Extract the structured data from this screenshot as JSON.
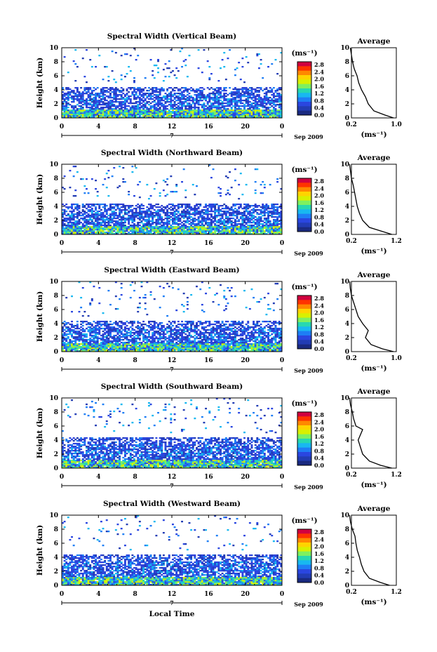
{
  "figure": {
    "x_common_label": "Local Time",
    "date_label": "Sep 2009",
    "scale_unit": "(ms⁻¹)",
    "colorbar_ticks": [
      "2.8",
      "2.4",
      "2.0",
      "1.6",
      "1.2",
      "0.8",
      "0.4",
      "0.0"
    ],
    "colorbar_colors": [
      "#d0003f",
      "#ff3300",
      "#ff8800",
      "#ffd400",
      "#d8f000",
      "#7ef060",
      "#27d8b0",
      "#18b8f0",
      "#1e7ef5",
      "#2a46e0",
      "#223cb4",
      "#1a2a80"
    ],
    "avg_title": "Average",
    "avg_xlabel": "(ms⁻¹)",
    "hour_ticks": [
      "0",
      "4",
      "8",
      "12",
      "16",
      "20",
      "0"
    ],
    "day_label": "7",
    "height_ticks": [
      "10",
      "8",
      "6",
      "4",
      "2",
      "0"
    ],
    "ylabel": "Height (km)"
  },
  "chart_data": [
    {
      "type": "heatmap",
      "title": "Spectral Width (Vertical Beam)",
      "ylabel": "Height (km)",
      "xlim": [
        0,
        24
      ],
      "ylim": [
        0,
        10
      ],
      "color_range": [
        0.0,
        2.8
      ],
      "layers": [
        {
          "from": 0.0,
          "to": 1.2,
          "level": "high"
        },
        {
          "from": 1.2,
          "to": 3.5,
          "level": "mid"
        },
        {
          "from": 3.5,
          "to": 4.5,
          "level": "low"
        },
        {
          "from": 5.0,
          "to": 10.0,
          "level": "sparse"
        }
      ],
      "average": {
        "xlabel": "(ms⁻¹)",
        "xticks": [
          "0.2",
          "1.0"
        ],
        "xlim": [
          0.2,
          1.0
        ],
        "profile": [
          [
            0.95,
            0.0
          ],
          [
            0.8,
            0.4
          ],
          [
            0.6,
            1.0
          ],
          [
            0.5,
            2.0
          ],
          [
            0.45,
            3.0
          ],
          [
            0.38,
            4.0
          ],
          [
            0.33,
            5.0
          ],
          [
            0.3,
            6.0
          ],
          [
            0.25,
            7.0
          ],
          [
            0.22,
            8.0
          ],
          [
            0.2,
            9.0
          ],
          [
            0.18,
            10.0
          ]
        ]
      }
    },
    {
      "type": "heatmap",
      "title": "Spectral Width (Northward Beam)",
      "ylabel": "Height (km)",
      "xlim": [
        0,
        24
      ],
      "ylim": [
        0,
        10
      ],
      "color_range": [
        0.0,
        2.8
      ],
      "layers": [
        {
          "from": 0.0,
          "to": 1.2,
          "level": "high"
        },
        {
          "from": 1.2,
          "to": 3.5,
          "level": "mid"
        },
        {
          "from": 3.5,
          "to": 4.5,
          "level": "low"
        },
        {
          "from": 5.0,
          "to": 10.0,
          "level": "sparse"
        }
      ],
      "average": {
        "xlabel": "(ms⁻¹)",
        "xticks": [
          "0.2",
          "1.2"
        ],
        "xlim": [
          0.2,
          1.2
        ],
        "profile": [
          [
            1.1,
            0.0
          ],
          [
            0.9,
            0.4
          ],
          [
            0.6,
            1.0
          ],
          [
            0.45,
            2.0
          ],
          [
            0.38,
            3.0
          ],
          [
            0.33,
            4.0
          ],
          [
            0.3,
            5.0
          ],
          [
            0.27,
            6.0
          ],
          [
            0.24,
            7.0
          ],
          [
            0.2,
            8.0
          ],
          [
            0.18,
            9.0
          ],
          [
            0.16,
            10.0
          ]
        ]
      }
    },
    {
      "type": "heatmap",
      "title": "Spectral Width (Eastward Beam)",
      "ylabel": "Height (km)",
      "xlim": [
        0,
        24
      ],
      "ylim": [
        0,
        10
      ],
      "color_range": [
        0.0,
        2.8
      ],
      "layers": [
        {
          "from": 0.0,
          "to": 1.2,
          "level": "high"
        },
        {
          "from": 1.2,
          "to": 3.5,
          "level": "mid"
        },
        {
          "from": 3.5,
          "to": 4.5,
          "level": "low"
        },
        {
          "from": 5.0,
          "to": 10.0,
          "level": "sparse"
        }
      ],
      "average": {
        "xlabel": "(ms⁻¹)",
        "xticks": [
          "0.2",
          "1.0"
        ],
        "xlim": [
          0.2,
          1.0
        ],
        "profile": [
          [
            0.95,
            0.0
          ],
          [
            0.75,
            0.4
          ],
          [
            0.55,
            1.0
          ],
          [
            0.45,
            2.0
          ],
          [
            0.5,
            3.0
          ],
          [
            0.4,
            4.0
          ],
          [
            0.32,
            5.0
          ],
          [
            0.28,
            6.0
          ],
          [
            0.24,
            7.0
          ],
          [
            0.2,
            8.0
          ],
          [
            0.18,
            9.0
          ],
          [
            0.17,
            10.0
          ]
        ]
      }
    },
    {
      "type": "heatmap",
      "title": "Spectral Width (Southward Beam)",
      "ylabel": "Height (km)",
      "xlim": [
        0,
        24
      ],
      "ylim": [
        0,
        10
      ],
      "color_range": [
        0.0,
        2.8
      ],
      "layers": [
        {
          "from": 0.0,
          "to": 1.2,
          "level": "high"
        },
        {
          "from": 1.2,
          "to": 3.5,
          "level": "mid"
        },
        {
          "from": 3.5,
          "to": 4.5,
          "level": "low"
        },
        {
          "from": 5.0,
          "to": 10.0,
          "level": "sparse"
        }
      ],
      "average": {
        "xlabel": "(ms⁻¹)",
        "xticks": [
          "0.2",
          "1.2"
        ],
        "xlim": [
          0.2,
          1.2
        ],
        "profile": [
          [
            1.1,
            0.0
          ],
          [
            0.85,
            0.4
          ],
          [
            0.6,
            1.0
          ],
          [
            0.45,
            2.0
          ],
          [
            0.4,
            3.0
          ],
          [
            0.35,
            4.0
          ],
          [
            0.45,
            5.5
          ],
          [
            0.3,
            6.0
          ],
          [
            0.25,
            7.0
          ],
          [
            0.22,
            8.0
          ],
          [
            0.18,
            9.0
          ],
          [
            0.16,
            10.0
          ]
        ]
      }
    },
    {
      "type": "heatmap",
      "title": "Spectral Width (Westward Beam)",
      "ylabel": "Height (km)",
      "xlim": [
        0,
        24
      ],
      "ylim": [
        0,
        10
      ],
      "color_range": [
        0.0,
        2.8
      ],
      "layers": [
        {
          "from": 0.0,
          "to": 1.2,
          "level": "high"
        },
        {
          "from": 1.2,
          "to": 3.5,
          "level": "mid"
        },
        {
          "from": 3.5,
          "to": 4.5,
          "level": "low"
        },
        {
          "from": 5.0,
          "to": 10.0,
          "level": "sparse"
        }
      ],
      "average": {
        "xlabel": "(ms⁻¹)",
        "xticks": [
          "0.2",
          "1.2"
        ],
        "xlim": [
          0.2,
          1.2
        ],
        "profile": [
          [
            1.05,
            0.0
          ],
          [
            0.85,
            0.4
          ],
          [
            0.6,
            1.0
          ],
          [
            0.48,
            2.0
          ],
          [
            0.42,
            3.0
          ],
          [
            0.38,
            4.0
          ],
          [
            0.33,
            5.0
          ],
          [
            0.3,
            6.0
          ],
          [
            0.28,
            7.0
          ],
          [
            0.22,
            8.0
          ],
          [
            0.18,
            9.0
          ],
          [
            0.16,
            10.0
          ]
        ]
      }
    }
  ]
}
